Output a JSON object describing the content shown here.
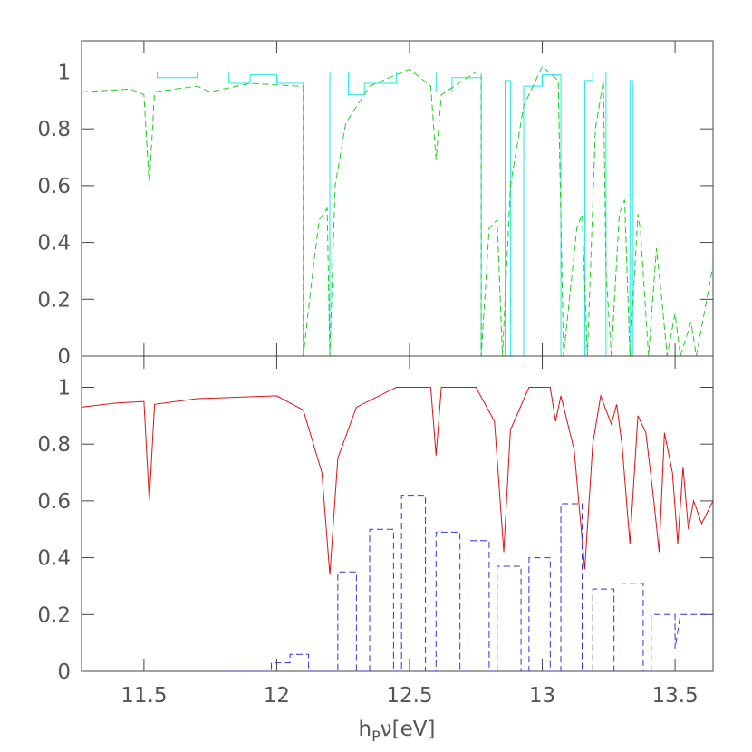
{
  "chart_data": [
    {
      "type": "line",
      "xlim": [
        11.265,
        13.643
      ],
      "ylim": [
        0,
        1.11
      ],
      "xticks": [
        11.5,
        12,
        12.5,
        13,
        13.5
      ],
      "yticks": [
        0,
        0.2,
        0.4,
        0.6,
        0.8,
        1
      ],
      "series": [
        {
          "color": "#22e8e8",
          "dash": false,
          "x": [
            11.265,
            11.55,
            11.55,
            11.7,
            11.7,
            11.82,
            11.82,
            11.9,
            11.9,
            12.0,
            12.0,
            12.1,
            12.1,
            12.2,
            12.2,
            12.27,
            12.27,
            12.33,
            12.33,
            12.45,
            12.45,
            12.6,
            12.6,
            12.66,
            12.66,
            12.77,
            12.77,
            12.86,
            12.86,
            12.88,
            12.88,
            12.93,
            12.93,
            13.0,
            13.0,
            13.07,
            13.07,
            13.16,
            13.16,
            13.19,
            13.19,
            13.24,
            13.24,
            13.33,
            13.33,
            13.34,
            13.34,
            13.643
          ],
          "y": [
            1.0,
            1.0,
            0.98,
            0.98,
            1.0,
            1.0,
            0.96,
            0.96,
            0.99,
            0.99,
            0.96,
            0.96,
            0,
            0,
            1.0,
            1.0,
            0.92,
            0.92,
            0.96,
            0.96,
            1.0,
            1.0,
            0.93,
            0.93,
            0.98,
            0.98,
            0,
            0,
            0.97,
            0.97,
            0,
            0,
            0.95,
            0.95,
            0.99,
            0.99,
            0,
            0,
            0.97,
            0.97,
            1.0,
            1.0,
            0,
            0,
            0.97,
            0.97,
            0,
            0
          ]
        },
        {
          "color": "#22cc22",
          "dash": true,
          "x": [
            11.265,
            11.45,
            11.5,
            11.52,
            11.54,
            11.7,
            11.75,
            11.9,
            12.08,
            12.1,
            12.1,
            12.13,
            12.16,
            12.19,
            12.2,
            12.22,
            12.26,
            12.35,
            12.5,
            12.58,
            12.6,
            12.62,
            12.75,
            12.77,
            12.77,
            12.8,
            12.83,
            12.85,
            12.88,
            12.93,
            13.0,
            13.06,
            13.08,
            13.13,
            13.15,
            13.17,
            13.2,
            13.23,
            13.24,
            13.26,
            13.29,
            13.31,
            13.33,
            13.36,
            13.37,
            13.4,
            13.43,
            13.45,
            13.47,
            13.5,
            13.52,
            13.56,
            13.58,
            13.643
          ],
          "y": [
            0.93,
            0.94,
            0.92,
            0.6,
            0.93,
            0.95,
            0.93,
            0.96,
            0.95,
            0.95,
            0,
            0.25,
            0.48,
            0.52,
            0,
            0.6,
            0.82,
            0.95,
            1.01,
            0.95,
            0.69,
            0.92,
            1.0,
            1.0,
            0,
            0.45,
            0.48,
            0,
            0.6,
            0.88,
            1.02,
            0.97,
            0,
            0.45,
            0.5,
            0,
            0.8,
            0.97,
            0.3,
            0,
            0.5,
            0.55,
            0,
            0.5,
            0.44,
            0,
            0.38,
            0.2,
            0,
            0.15,
            0,
            0.12,
            0,
            0.32
          ]
        }
      ]
    },
    {
      "type": "line",
      "xlim": [
        11.265,
        13.643
      ],
      "ylim": [
        0,
        1.11
      ],
      "xticks": [
        11.5,
        12,
        12.5,
        13,
        13.5
      ],
      "yticks": [
        0,
        0.2,
        0.4,
        0.6,
        0.8,
        1
      ],
      "xlabel": {
        "main": "h",
        "sub": "P",
        "rest": "ν[eV]"
      },
      "series": [
        {
          "color": "#dd1111",
          "dash": false,
          "x": [
            11.265,
            11.4,
            11.5,
            11.52,
            11.54,
            11.7,
            12.0,
            12.1,
            12.17,
            12.2,
            12.23,
            12.3,
            12.45,
            12.58,
            12.6,
            12.62,
            12.75,
            12.82,
            12.855,
            12.88,
            12.95,
            13.03,
            13.05,
            13.07,
            13.12,
            13.16,
            13.19,
            13.22,
            13.26,
            13.28,
            13.3,
            13.33,
            13.36,
            13.39,
            13.42,
            13.44,
            13.46,
            13.49,
            13.51,
            13.53,
            13.55,
            13.57,
            13.6,
            13.643
          ],
          "y": [
            0.93,
            0.945,
            0.95,
            0.6,
            0.94,
            0.96,
            0.97,
            0.92,
            0.7,
            0.34,
            0.75,
            0.93,
            1.0,
            1.0,
            0.76,
            1.0,
            1.0,
            0.88,
            0.42,
            0.85,
            1.0,
            1.0,
            0.88,
            0.97,
            0.78,
            0.36,
            0.8,
            0.97,
            0.87,
            0.94,
            0.8,
            0.45,
            0.9,
            0.84,
            0.6,
            0.42,
            0.84,
            0.7,
            0.45,
            0.72,
            0.5,
            0.6,
            0.52,
            0.6
          ]
        },
        {
          "color": "#3333dd",
          "dash": true,
          "x": [
            11.8,
            11.98,
            11.98,
            12.05,
            12.05,
            12.12,
            12.12,
            12.23,
            12.23,
            12.3,
            12.3,
            12.35,
            12.35,
            12.44,
            12.44,
            12.47,
            12.47,
            12.56,
            12.56,
            12.6,
            12.6,
            12.69,
            12.69,
            12.72,
            12.72,
            12.8,
            12.8,
            12.83,
            12.83,
            12.92,
            12.92,
            12.95,
            12.95,
            13.03,
            13.03,
            13.07,
            13.07,
            13.15,
            13.15,
            13.19,
            13.19,
            13.27,
            13.27,
            13.3,
            13.3,
            13.38,
            13.38,
            13.41,
            13.41,
            13.5,
            13.5,
            13.52,
            13.643
          ],
          "y": [
            0,
            0,
            0.03,
            0.03,
            0.06,
            0.06,
            0,
            0,
            0.35,
            0.35,
            0,
            0,
            0.5,
            0.5,
            0,
            0,
            0.62,
            0.62,
            0,
            0,
            0.49,
            0.49,
            0,
            0,
            0.46,
            0.46,
            0,
            0,
            0.37,
            0.37,
            0,
            0,
            0.4,
            0.4,
            0,
            0,
            0.59,
            0.59,
            0,
            0,
            0.29,
            0.29,
            0,
            0,
            0.31,
            0.31,
            0,
            0,
            0.2,
            0.2,
            0.08,
            0.2,
            0.2
          ]
        }
      ]
    }
  ]
}
